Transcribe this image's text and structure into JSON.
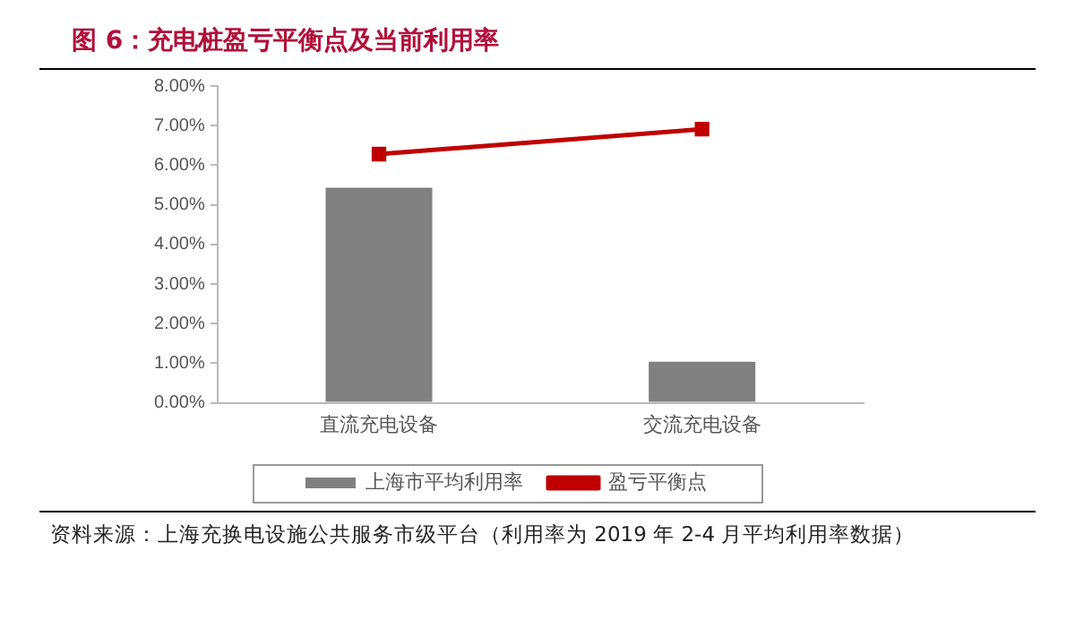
{
  "chart_data": {
    "type": "bar",
    "title": "图 6：充电桩盈亏平衡点及当前利用率",
    "categories": [
      "直流充电设备",
      "交流充电设备"
    ],
    "series": [
      {
        "name": "上海市平均利用率",
        "color": "#808080",
        "values": [
          5.43,
          1.04
        ]
      },
      {
        "name": "盈亏平衡点",
        "type": "line",
        "color": "#c00000",
        "values": [
          6.28,
          6.91
        ]
      }
    ],
    "ylim": [
      0,
      8
    ],
    "yticks": [
      {
        "value": 0,
        "label": "0.00%"
      },
      {
        "value": 1,
        "label": "1.00%"
      },
      {
        "value": 2,
        "label": "2.00%"
      },
      {
        "value": 3,
        "label": "3.00%"
      },
      {
        "value": 4,
        "label": "4.00%"
      },
      {
        "value": 5,
        "label": "5.00%"
      },
      {
        "value": 6,
        "label": "6.00%"
      },
      {
        "value": 7,
        "label": "7.00%"
      },
      {
        "value": 8,
        "label": "8.00%"
      }
    ],
    "grid": false,
    "legend": "bottom",
    "marker": "square",
    "line_style": "solid",
    "annotations": [
      "资料来源：上海充换电设施公共服务市级平台（利用率为 2019 年 2-4 月平均利用率数据）"
    ]
  }
}
